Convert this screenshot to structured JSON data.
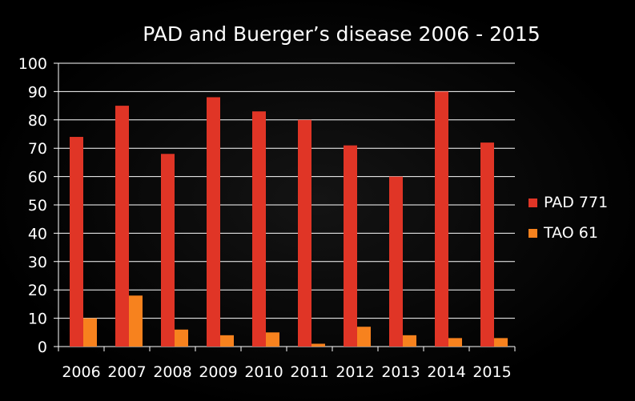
{
  "chart_data": {
    "type": "bar",
    "title": "PAD and Buerger’s disease 2006 - 2015",
    "categories": [
      "2006",
      "2007",
      "2008",
      "2009",
      "2010",
      "2011",
      "2012",
      "2013",
      "2014",
      "2015"
    ],
    "series": [
      {
        "name": "PAD 771",
        "color": "#e03526",
        "values": [
          74,
          85,
          68,
          88,
          83,
          80,
          71,
          60,
          90,
          72
        ]
      },
      {
        "name": "TAO 61",
        "color": "#f7821e",
        "values": [
          10,
          18,
          6,
          4,
          5,
          1,
          7,
          4,
          3,
          3
        ]
      }
    ],
    "yticks": [
      0,
      10,
      20,
      30,
      40,
      50,
      60,
      70,
      80,
      90,
      100
    ],
    "ylim": [
      0,
      100
    ],
    "xlabel": "",
    "ylabel": "",
    "grid": true,
    "legend": "right"
  }
}
